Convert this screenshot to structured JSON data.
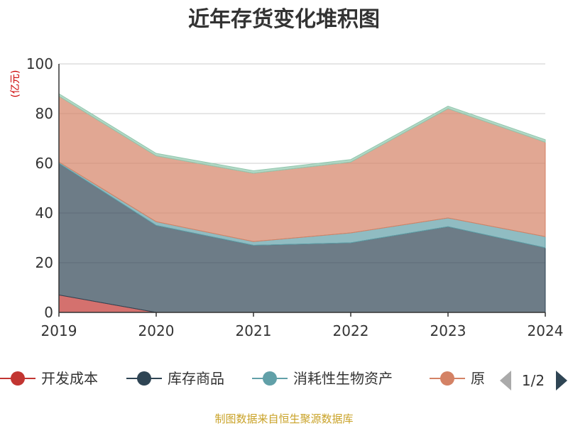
{
  "chart_data": {
    "type": "area",
    "stacked": true,
    "title": "近年存货变化堆积图",
    "ylabel": "(亿元)",
    "xlabel": "",
    "x": [
      "2019",
      "2020",
      "2021",
      "2022",
      "2023",
      "2024"
    ],
    "ylim": [
      0,
      100
    ],
    "yticks": [
      "0",
      "20",
      "40",
      "60",
      "80",
      "100"
    ],
    "grid": true,
    "series": [
      {
        "name": "开发成本",
        "color": "#c23531",
        "values": [
          7,
          0,
          0,
          0,
          0,
          0
        ]
      },
      {
        "name": "库存商品",
        "color": "#2f4554",
        "values": [
          53,
          35,
          27,
          28,
          34.5,
          26
        ]
      },
      {
        "name": "消耗性生物资产",
        "color": "#61a0a8",
        "values": [
          0.5,
          1.5,
          1.5,
          4,
          3.5,
          4.5
        ]
      },
      {
        "name": "原",
        "color": "#d48265",
        "values": [
          26.5,
          26.5,
          27.5,
          28.5,
          44,
          38
        ]
      },
      {
        "name": "",
        "color": "#91c7ae",
        "values": [
          1,
          1,
          1,
          1,
          1,
          1
        ]
      }
    ],
    "legend": {
      "position": "bottom",
      "visible_items": [
        "开发成本",
        "库存商品",
        "消耗性生物资产",
        "原"
      ],
      "page": "1/2"
    }
  },
  "footer": {
    "source": "制图数据来自恒生聚源数据库"
  }
}
